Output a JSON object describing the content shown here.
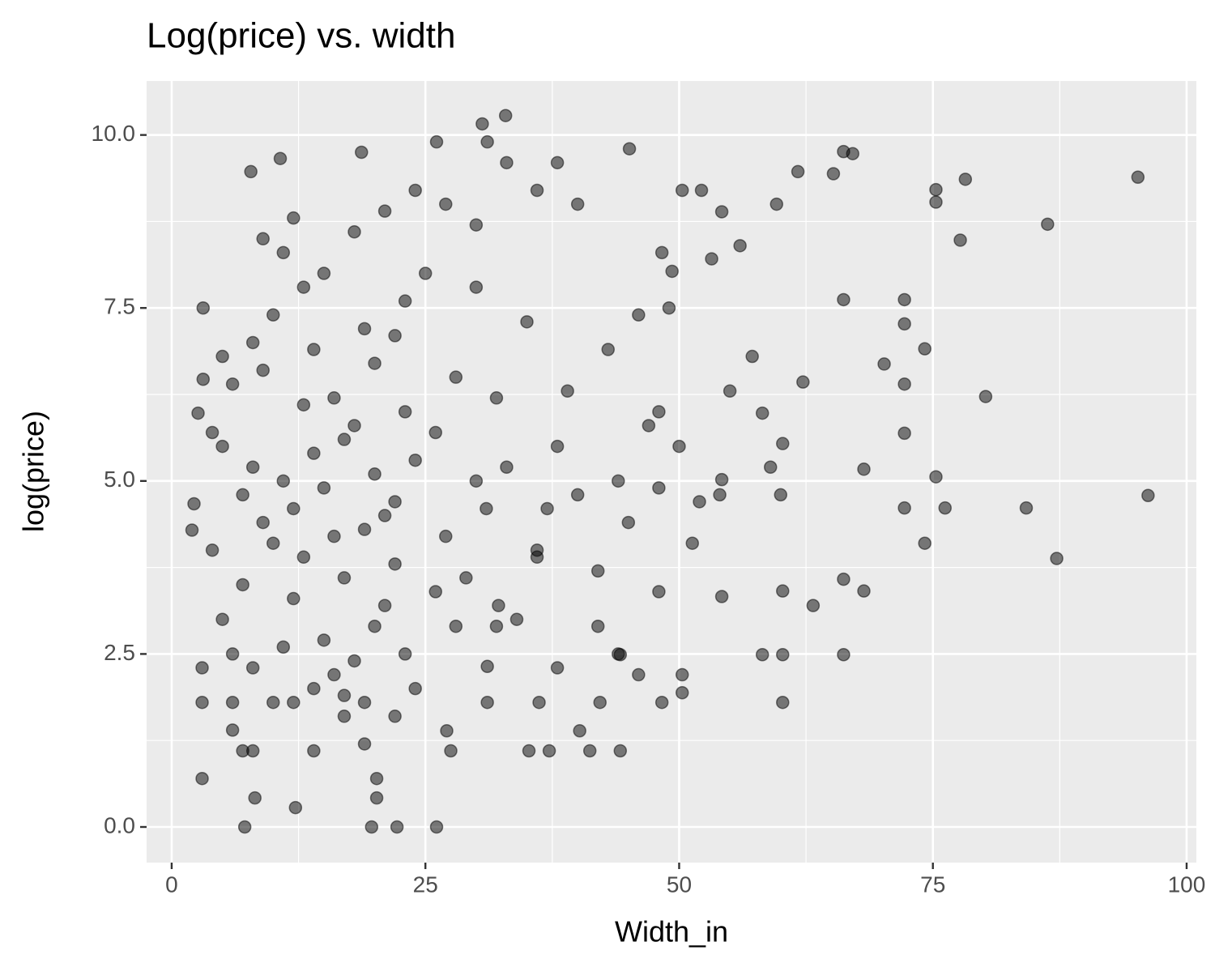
{
  "chart_data": {
    "type": "scatter",
    "title": "Log(price) vs. width",
    "x_label": "Width_in",
    "y_label": "log(price)",
    "color": "#000000",
    "point_opacity": 0.5,
    "grid": true,
    "xlim": [
      -2.47,
      100.96
    ],
    "ylim": [
      -0.515,
      10.78
    ],
    "xticks": [
      0,
      25,
      50,
      75,
      100
    ],
    "yticks": [
      {
        "value": 0,
        "label": "0.0"
      },
      {
        "value": 2.5,
        "label": "2.5"
      },
      {
        "value": 5,
        "label": "5.0"
      },
      {
        "value": 7.5,
        "label": "7.5"
      },
      {
        "value": 10,
        "label": "10.0"
      }
    ],
    "minor_xticks": [
      12.5,
      37.5,
      62.5,
      87.5
    ],
    "minor_yticks": [
      1.25,
      3.75,
      6.25,
      8.75
    ],
    "x": [
      95.2,
      96.2,
      87.2,
      86.3,
      84.2,
      80.2,
      78.2,
      77.7,
      76.2,
      75.3,
      75.3,
      75.3,
      74.2,
      74.2,
      72.2,
      72.2,
      72.2,
      72.2,
      72.2,
      70.2,
      68.2,
      68.2,
      67.1,
      66.2,
      66.2,
      66.2,
      66.2,
      65.2,
      63.2,
      62.2,
      61.7,
      60.2,
      60.2,
      60.2,
      60.2,
      59.6,
      58.2,
      57.2,
      58.2,
      54.2,
      54.2,
      54.2,
      53.2,
      52.2,
      51.3,
      50.3,
      50.3,
      50.3,
      49.3,
      48.3,
      48.3,
      45.1,
      44.2,
      44.2,
      42.2,
      40.2,
      41.2,
      35.2,
      37.2,
      36.2,
      32.9,
      30.6,
      31.1,
      26.1,
      26.1,
      22.2,
      19.7,
      20.2,
      20.2,
      7.2,
      3.0,
      8.2,
      12.2,
      7.8,
      10.7,
      18.7,
      27.5,
      27.1,
      31.1,
      31.1,
      32.2,
      2.2,
      2.0,
      2.6,
      3.1,
      3.1,
      5,
      6,
      7,
      8,
      9,
      10,
      11,
      12,
      13,
      14,
      15,
      16,
      17,
      18,
      19,
      20,
      21,
      22,
      23,
      24,
      5,
      6,
      7,
      8,
      9,
      10,
      11,
      12,
      13,
      14,
      15,
      16,
      17,
      18,
      19,
      20,
      21,
      22,
      23,
      24,
      4,
      4,
      5,
      6,
      7,
      8,
      9,
      10,
      11,
      12,
      13,
      14,
      15,
      16,
      17,
      18,
      19,
      20,
      21,
      22,
      26,
      27,
      28,
      29,
      30,
      30,
      31,
      32,
      33,
      34,
      35,
      36,
      37,
      38,
      39,
      40,
      42,
      43,
      44,
      45,
      46,
      47,
      48,
      48,
      48,
      49,
      50,
      52,
      54,
      55,
      56,
      59,
      60,
      30,
      33,
      36,
      38,
      40,
      28,
      26,
      25,
      24,
      27,
      32,
      36,
      38,
      42,
      44,
      46,
      3,
      3,
      6,
      8,
      12,
      14,
      17,
      19,
      22,
      23
    ],
    "values": [
      9.39,
      4.79,
      3.88,
      8.71,
      4.61,
      6.22,
      9.36,
      8.48,
      4.61,
      5.06,
      9.03,
      9.21,
      4.1,
      6.91,
      4.61,
      7.27,
      7.62,
      6.4,
      5.69,
      6.69,
      5.17,
      3.41,
      9.73,
      9.76,
      2.49,
      3.58,
      7.62,
      9.44,
      3.2,
      6.43,
      9.47,
      1.8,
      2.49,
      3.41,
      5.54,
      9.0,
      2.49,
      6.8,
      5.98,
      3.33,
      8.89,
      5.02,
      8.21,
      9.2,
      4.1,
      9.2,
      2.2,
      1.94,
      8.03,
      1.8,
      8.3,
      9.8,
      2.49,
      1.1,
      1.8,
      1.39,
      1.1,
      1.1,
      1.1,
      1.8,
      10.28,
      10.16,
      9.9,
      9.9,
      0,
      0,
      0,
      0.7,
      0.42,
      0,
      0.7,
      0.42,
      0.28,
      9.47,
      9.66,
      9.75,
      1.1,
      1.39,
      1.8,
      2.32,
      3.2,
      4.67,
      4.29,
      5.98,
      7.5,
      6.47,
      5.5,
      6.4,
      4.8,
      5.2,
      4.4,
      4.1,
      5.0,
      4.6,
      3.9,
      5.4,
      4.9,
      6.2,
      3.6,
      5.8,
      4.3,
      5.1,
      3.2,
      4.7,
      6.0,
      5.3,
      3.0,
      2.5,
      3.5,
      7.0,
      6.6,
      7.4,
      8.3,
      8.8,
      7.8,
      6.9,
      2.7,
      2.2,
      1.6,
      8.6,
      7.2,
      2.9,
      8.9,
      3.8,
      7.6,
      2.0,
      4.0,
      5.7,
      6.8,
      1.8,
      1.1,
      2.3,
      8.5,
      1.8,
      2.6,
      3.3,
      6.1,
      1.1,
      8.0,
      4.2,
      5.6,
      2.4,
      1.8,
      6.7,
      4.5,
      7.1,
      5.7,
      4.2,
      6.5,
      3.6,
      7.8,
      5.0,
      4.6,
      6.2,
      5.2,
      3.0,
      7.3,
      4.0,
      4.6,
      5.5,
      6.3,
      4.8,
      3.7,
      6.9,
      5.0,
      4.4,
      7.4,
      5.8,
      4.9,
      3.4,
      6.0,
      7.5,
      5.5,
      4.7,
      4.8,
      6.3,
      8.4,
      5.2,
      4.8,
      8.7,
      9.6,
      9.2,
      9.6,
      9.0,
      2.9,
      3.4,
      8.0,
      9.2,
      9.0,
      2.9,
      3.9,
      2.3,
      2.9,
      2.5,
      2.2,
      2.3,
      1.8,
      1.4,
      1.1,
      1.8,
      2.0,
      1.9,
      1.2,
      1.6,
      2.5
    ]
  }
}
